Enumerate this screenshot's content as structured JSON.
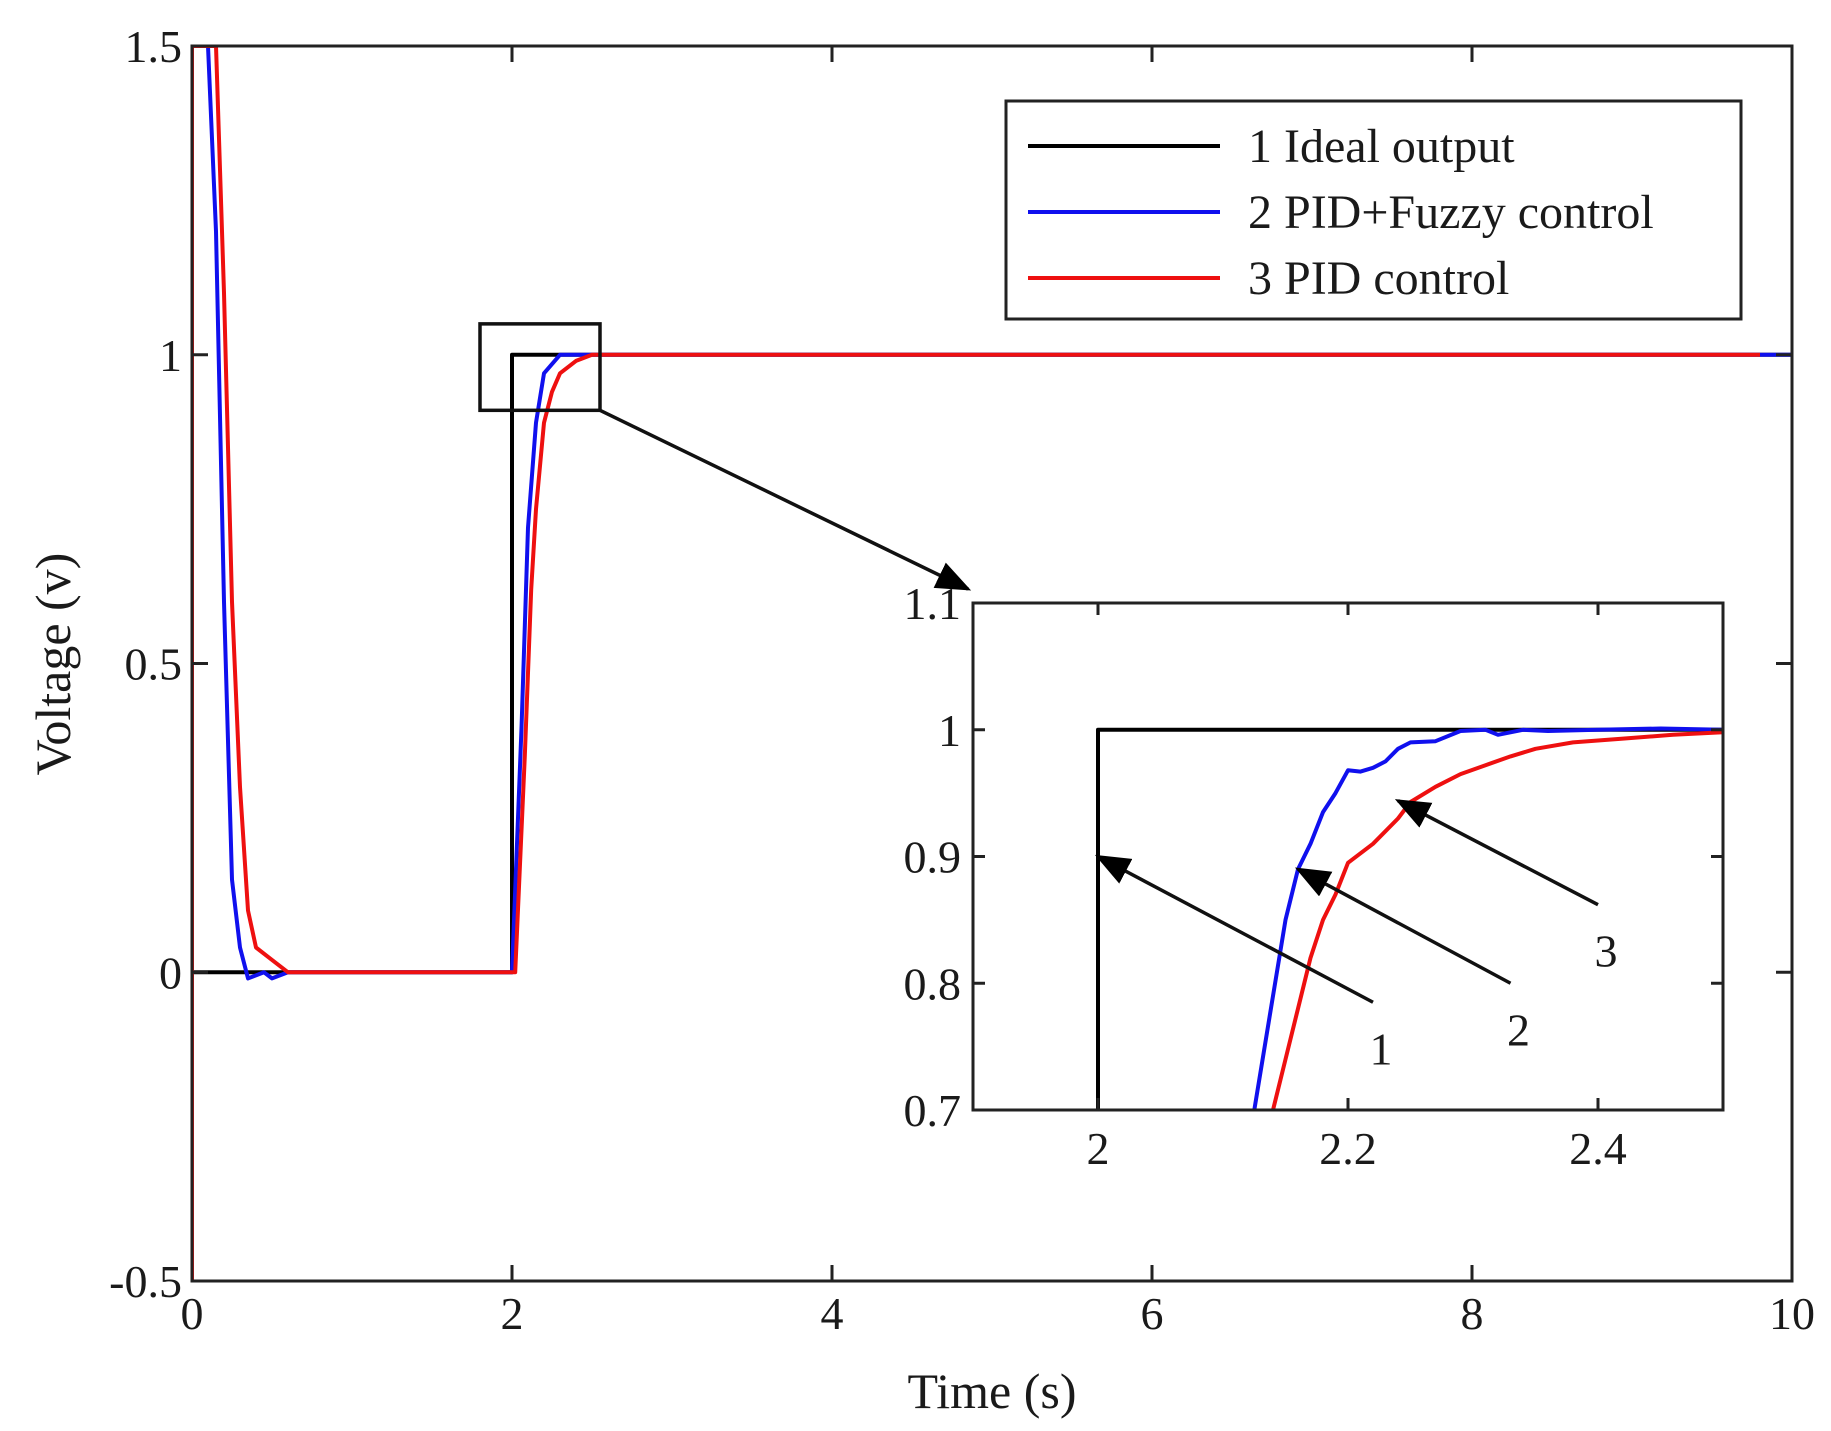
{
  "chart_data": {
    "type": "line",
    "main": {
      "xlabel": "Time (s)",
      "ylabel": "Voltage (v)",
      "xlim": [
        0,
        10
      ],
      "ylim": [
        -0.5,
        1.5
      ],
      "xticks": [
        0,
        2,
        4,
        6,
        8,
        10
      ],
      "xtick_labels": [
        "0",
        "2",
        "4",
        "6",
        "8",
        "10"
      ],
      "yticks": [
        -0.5,
        0,
        0.5,
        1,
        1.5
      ],
      "ytick_labels": [
        "-0.5",
        "0",
        "0.5",
        "1",
        "1.5"
      ],
      "grid": false,
      "legend_position": "top-right"
    },
    "series": [
      {
        "name": "1 Ideal output",
        "color": "#000000",
        "points": [
          [
            0,
            0
          ],
          [
            2,
            0
          ],
          [
            2,
            1
          ],
          [
            10,
            1
          ]
        ]
      },
      {
        "name": "2 PID+Fuzzy control",
        "color": "#1010ee",
        "points": [
          [
            0,
            -0.5
          ],
          [
            0,
            1.5
          ],
          [
            0.1,
            1.5
          ],
          [
            0.15,
            1.2
          ],
          [
            0.2,
            0.6
          ],
          [
            0.25,
            0.15
          ],
          [
            0.3,
            0.04
          ],
          [
            0.35,
            -0.01
          ],
          [
            0.45,
            0.0
          ],
          [
            0.5,
            -0.01
          ],
          [
            0.6,
            0.0
          ],
          [
            2.0,
            0.0
          ],
          [
            2.06,
            0.4
          ],
          [
            2.1,
            0.72
          ],
          [
            2.15,
            0.89
          ],
          [
            2.2,
            0.97
          ],
          [
            2.3,
            1.0
          ],
          [
            10,
            1.0
          ]
        ]
      },
      {
        "name": "3 PID control",
        "color": "#ee1010",
        "points": [
          [
            0,
            -0.5
          ],
          [
            0,
            1.5
          ],
          [
            0.15,
            1.5
          ],
          [
            0.2,
            1.1
          ],
          [
            0.25,
            0.6
          ],
          [
            0.3,
            0.3
          ],
          [
            0.35,
            0.1
          ],
          [
            0.4,
            0.04
          ],
          [
            0.5,
            0.02
          ],
          [
            0.6,
            0.0
          ],
          [
            2.02,
            0.0
          ],
          [
            2.08,
            0.35
          ],
          [
            2.12,
            0.62
          ],
          [
            2.15,
            0.75
          ],
          [
            2.2,
            0.89
          ],
          [
            2.25,
            0.94
          ],
          [
            2.3,
            0.97
          ],
          [
            2.4,
            0.99
          ],
          [
            2.5,
            1.0
          ],
          [
            9.8,
            1.0
          ]
        ]
      }
    ],
    "inset": {
      "xlim": [
        1.9,
        2.5
      ],
      "ylim": [
        0.7,
        1.1
      ],
      "xticks": [
        2,
        2.2,
        2.4
      ],
      "xtick_labels": [
        "2",
        "2.2",
        "2.4"
      ],
      "yticks": [
        0.7,
        0.8,
        0.9,
        1,
        1.1
      ],
      "ytick_labels": [
        "0.7",
        "0.8",
        "0.9",
        "1",
        "1.1"
      ],
      "series": [
        {
          "name": "1 Ideal output",
          "color": "#000000",
          "points": [
            [
              2,
              0.7
            ],
            [
              2,
              1.0
            ],
            [
              2.5,
              1.0
            ]
          ]
        },
        {
          "name": "2 PID+Fuzzy control",
          "color": "#1010ee",
          "points": [
            [
              2.125,
              0.7
            ],
            [
              2.14,
              0.79
            ],
            [
              2.15,
              0.85
            ],
            [
              2.16,
              0.89
            ],
            [
              2.17,
              0.91
            ],
            [
              2.18,
              0.935
            ],
            [
              2.19,
              0.95
            ],
            [
              2.2,
              0.968
            ],
            [
              2.21,
              0.967
            ],
            [
              2.22,
              0.97
            ],
            [
              2.23,
              0.975
            ],
            [
              2.24,
              0.985
            ],
            [
              2.25,
              0.99
            ],
            [
              2.27,
              0.991
            ],
            [
              2.29,
              0.999
            ],
            [
              2.31,
              1.0
            ],
            [
              2.32,
              0.996
            ],
            [
              2.34,
              1.0
            ],
            [
              2.36,
              0.999
            ],
            [
              2.4,
              1.0
            ],
            [
              2.45,
              1.001
            ],
            [
              2.5,
              1.0
            ]
          ]
        },
        {
          "name": "3 PID control",
          "color": "#ee1010",
          "points": [
            [
              2.14,
              0.7
            ],
            [
              2.15,
              0.74
            ],
            [
              2.16,
              0.78
            ],
            [
              2.17,
              0.82
            ],
            [
              2.18,
              0.85
            ],
            [
              2.19,
              0.87
            ],
            [
              2.2,
              0.895
            ],
            [
              2.22,
              0.91
            ],
            [
              2.24,
              0.93
            ],
            [
              2.25,
              0.943
            ],
            [
              2.27,
              0.955
            ],
            [
              2.29,
              0.965
            ],
            [
              2.31,
              0.972
            ],
            [
              2.33,
              0.979
            ],
            [
              2.35,
              0.985
            ],
            [
              2.38,
              0.99
            ],
            [
              2.42,
              0.993
            ],
            [
              2.46,
              0.996
            ],
            [
              2.5,
              0.998
            ]
          ]
        }
      ],
      "callouts": [
        {
          "label": "1",
          "tip": [
            2.0,
            0.9
          ],
          "tail": [
            2.22,
            0.785
          ]
        },
        {
          "label": "2",
          "tip": [
            2.16,
            0.89
          ],
          "tail": [
            2.33,
            0.8
          ]
        },
        {
          "label": "3",
          "tip": [
            2.24,
            0.944
          ],
          "tail": [
            2.4,
            0.862
          ]
        }
      ]
    },
    "zoom_box": {
      "x": [
        1.8,
        2.55
      ],
      "y": [
        0.91,
        1.05
      ]
    }
  }
}
